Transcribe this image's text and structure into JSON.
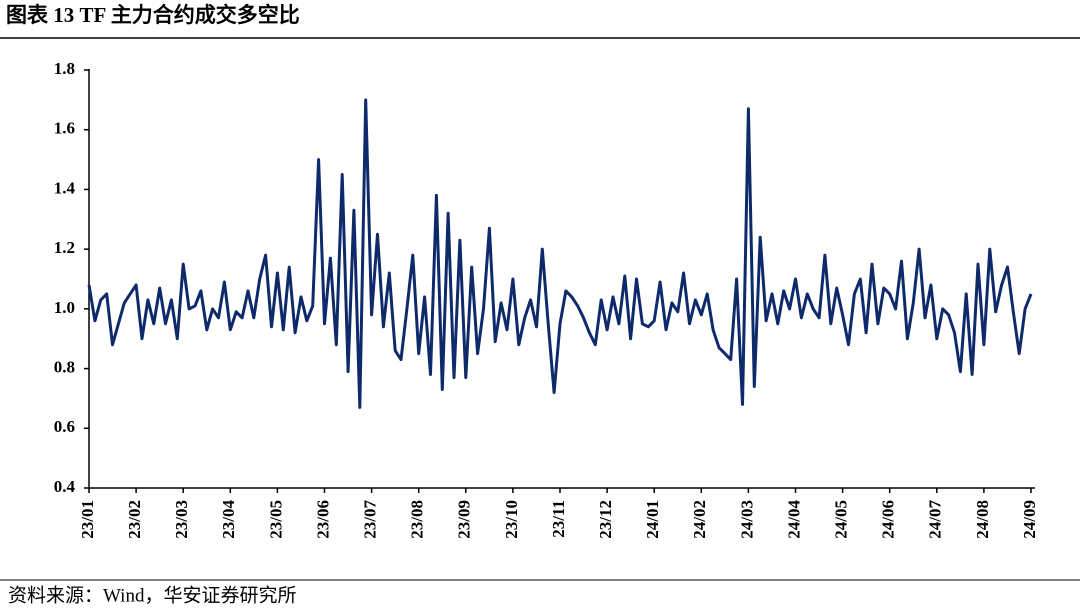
{
  "chart_data": {
    "type": "line",
    "title": "图表 13 TF 主力合约成交多空比",
    "source": "资料来源：Wind，华安证券研究所",
    "xticks": [
      "23/01",
      "23/02",
      "23/03",
      "23/04",
      "23/05",
      "23/06",
      "23/07",
      "23/08",
      "23/09",
      "23/10",
      "23/11",
      "23/12",
      "24/01",
      "24/02",
      "24/03",
      "24/04",
      "24/05",
      "24/06",
      "24/07",
      "24/08",
      "24/09"
    ],
    "ylim": [
      0.4,
      1.8
    ],
    "yticks": [
      {
        "value": 0.4,
        "label": "0.4"
      },
      {
        "value": 0.6,
        "label": "0.6"
      },
      {
        "value": 0.8,
        "label": "0.8"
      },
      {
        "value": 1,
        "label": "1.0"
      },
      {
        "value": 1.2,
        "label": "1.2"
      },
      {
        "value": 1.4,
        "label": "1.4"
      },
      {
        "value": 1.6,
        "label": "1.6"
      },
      {
        "value": 1.8,
        "label": "1.8"
      }
    ],
    "color": "#0e2a6b",
    "values": [
      1.08,
      0.96,
      1.03,
      1.05,
      0.88,
      0.95,
      1.02,
      1.05,
      1.08,
      0.9,
      1.03,
      0.95,
      1.07,
      0.95,
      1.03,
      0.9,
      1.15,
      1.0,
      1.01,
      1.06,
      0.93,
      1.0,
      0.97,
      1.09,
      0.93,
      0.99,
      0.97,
      1.06,
      0.97,
      1.1,
      1.18,
      0.94,
      1.12,
      0.93,
      1.14,
      0.92,
      1.04,
      0.96,
      1.01,
      1.5,
      0.95,
      1.17,
      0.88,
      1.45,
      0.79,
      1.33,
      0.67,
      1.7,
      0.98,
      1.25,
      0.94,
      1.12,
      0.86,
      0.83,
      1.0,
      1.18,
      0.85,
      1.04,
      0.78,
      1.38,
      0.73,
      1.32,
      0.77,
      1.23,
      0.77,
      1.14,
      0.85,
      1.0,
      1.27,
      0.89,
      1.02,
      0.93,
      1.1,
      0.88,
      0.97,
      1.03,
      0.94,
      1.2,
      0.95,
      0.72,
      0.95,
      1.06,
      1.04,
      1.01,
      0.97,
      0.92,
      0.88,
      1.03,
      0.93,
      1.04,
      0.95,
      1.11,
      0.9,
      1.1,
      0.95,
      0.94,
      0.96,
      1.09,
      0.93,
      1.02,
      0.99,
      1.12,
      0.95,
      1.03,
      0.98,
      1.05,
      0.93,
      0.87,
      0.85,
      0.83,
      1.1,
      0.68,
      1.67,
      0.74,
      1.24,
      0.96,
      1.05,
      0.95,
      1.06,
      1.0,
      1.1,
      0.97,
      1.05,
      1.0,
      0.97,
      1.18,
      0.95,
      1.07,
      0.98,
      0.88,
      1.05,
      1.1,
      0.92,
      1.15,
      0.95,
      1.07,
      1.05,
      1.0,
      1.16,
      0.9,
      1.02,
      1.2,
      0.97,
      1.08,
      0.9,
      1.0,
      0.98,
      0.92,
      0.79,
      1.05,
      0.78,
      1.15,
      0.88,
      1.2,
      0.99,
      1.08,
      1.14,
      0.99,
      0.85,
      1.0,
      1.05
    ]
  }
}
